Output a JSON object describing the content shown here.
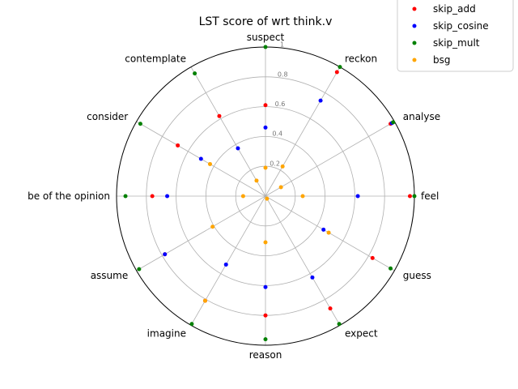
{
  "chart_data": {
    "type": "scatter",
    "projection": "polar",
    "title": "LST score of wrt think.v",
    "categories": [
      "feel",
      "analyse",
      "reckon",
      "suspect",
      "contemplate",
      "consider",
      "be of the opinion",
      "assume",
      "imagine",
      "reason",
      "expect",
      "guess"
    ],
    "angles_deg": [
      0,
      30,
      60,
      90,
      120,
      150,
      180,
      210,
      240,
      270,
      300,
      330
    ],
    "rlim": [
      0,
      1
    ],
    "r_ticks": [
      "0.2",
      "0.4",
      "0.6",
      "0.8",
      "1"
    ],
    "r_tick_values": [
      0.2,
      0.4,
      0.6,
      0.8,
      1.0
    ],
    "grid": true,
    "legend_position": "top-right",
    "series": [
      {
        "name": "skip_add",
        "color": "#ff0000",
        "values": [
          0.97,
          0.97,
          0.96,
          0.61,
          0.62,
          0.68,
          0.76,
          0.78,
          0.81,
          0.8,
          0.87,
          0.83
        ]
      },
      {
        "name": "skip_cosine",
        "color": "#0000ff",
        "values": [
          0.62,
          0.98,
          0.74,
          0.46,
          0.37,
          0.5,
          0.66,
          0.78,
          0.53,
          0.61,
          0.63,
          0.45
        ]
      },
      {
        "name": "skip_mult",
        "color": "#008000",
        "values": [
          1.0,
          0.99,
          1.0,
          1.0,
          0.95,
          0.97,
          0.94,
          0.98,
          0.99,
          0.96,
          0.99,
          0.97
        ]
      },
      {
        "name": "bsg",
        "color": "#ffa500",
        "values": [
          0.25,
          0.12,
          0.23,
          0.19,
          0.12,
          0.43,
          0.15,
          0.41,
          0.81,
          0.31,
          0.02,
          0.49
        ]
      }
    ]
  }
}
